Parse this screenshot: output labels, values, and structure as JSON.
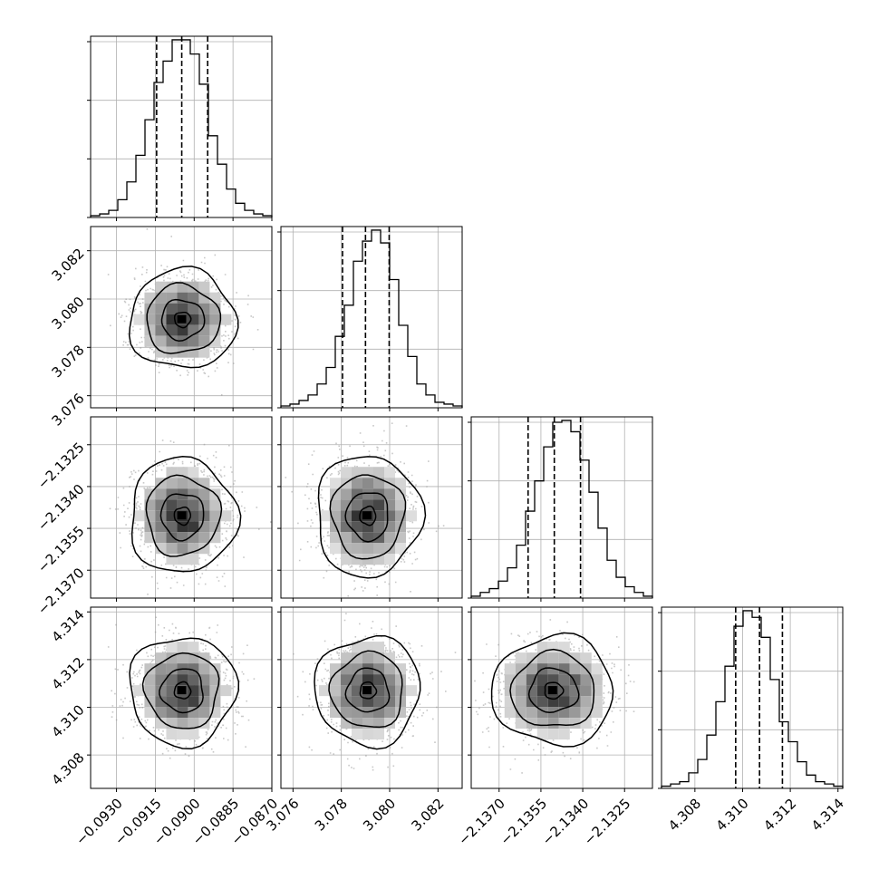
{
  "chart_data": {
    "type": "corner",
    "title": "",
    "grid": true,
    "parameters": [
      {
        "range": [
          -0.094,
          -0.087
        ],
        "ticks": [
          "-0.0930",
          "-0.0915",
          "-0.0900",
          "-0.0885",
          "-0.0870"
        ],
        "tick_values": [
          -0.093,
          -0.0915,
          -0.09,
          -0.0885,
          -0.087
        ],
        "quantiles": [
          -0.09145,
          -0.09048,
          -0.08948
        ],
        "hist_counts": [
          1,
          2,
          4,
          10,
          20,
          35,
          55,
          76,
          88,
          100,
          100,
          92,
          75,
          46,
          30,
          16,
          8,
          4,
          2,
          1
        ]
      },
      {
        "range": [
          3.0755,
          3.083
        ],
        "ticks": [
          "3.076",
          "3.078",
          "3.080",
          "3.082"
        ],
        "tick_values": [
          3.076,
          3.078,
          3.08,
          3.082
        ],
        "quantiles": [
          3.07805,
          3.079,
          3.07998
        ],
        "hist_counts": [
          1,
          2,
          4,
          7,
          13,
          22,
          39,
          56,
          80,
          91,
          97,
          90,
          70,
          45,
          28,
          13,
          7,
          3,
          2,
          1
        ]
      },
      {
        "range": [
          -2.138,
          -2.1315
        ],
        "ticks": [
          "-2.1370",
          "-2.1355",
          "-2.1340",
          "-2.1325"
        ],
        "tick_values": [
          -2.137,
          -2.1355,
          -2.134,
          -2.1325
        ],
        "quantiles": [
          -2.13596,
          -2.13502,
          -2.13408
        ],
        "hist_counts": [
          1,
          3,
          5,
          9,
          16,
          28,
          46,
          62,
          80,
          93,
          94,
          88,
          73,
          56,
          37,
          20,
          11,
          6,
          3,
          1
        ]
      },
      {
        "range": [
          4.3066,
          4.3142
        ],
        "ticks": [
          "4.308",
          "4.310",
          "4.312",
          "4.314"
        ],
        "tick_values": [
          4.308,
          4.31,
          4.312,
          4.314
        ],
        "quantiles": [
          4.30971,
          4.31071,
          4.31167
        ],
        "hist_counts": [
          1,
          2,
          3,
          7,
          13,
          24,
          39,
          55,
          73,
          80,
          77,
          68,
          49,
          30,
          21,
          12,
          6,
          3,
          2,
          1
        ]
      }
    ],
    "pairs": [
      {
        "row": 1,
        "col": 0,
        "center": [
          -0.09045,
          3.07915
        ],
        "spread": [
          0.0009,
          0.0009
        ]
      },
      {
        "row": 2,
        "col": 0,
        "center": [
          -0.09045,
          -2.13505
        ],
        "spread": [
          0.0009,
          0.0009
        ]
      },
      {
        "row": 2,
        "col": 1,
        "center": [
          3.0791,
          -2.13505
        ],
        "spread": [
          0.00095,
          0.00095
        ]
      },
      {
        "row": 3,
        "col": 0,
        "center": [
          -0.09045,
          4.3107
        ],
        "spread": [
          0.0009,
          0.001
        ]
      },
      {
        "row": 3,
        "col": 1,
        "center": [
          3.0791,
          4.3107
        ],
        "spread": [
          0.00095,
          0.001
        ]
      },
      {
        "row": 3,
        "col": 2,
        "center": [
          -2.13505,
          4.3107
        ],
        "spread": [
          0.00095,
          0.001
        ]
      }
    ]
  }
}
